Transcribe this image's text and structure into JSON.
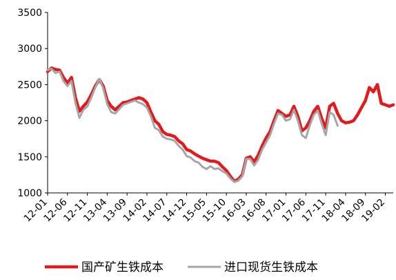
{
  "chart_data": {
    "type": "line",
    "ylim": [
      1000,
      3500
    ],
    "yticks": [
      1000,
      1500,
      2000,
      2500,
      3000,
      3500
    ],
    "xlim": [
      "2012-01",
      "2019-04"
    ],
    "xticks": [
      "12-01",
      "12-06",
      "12-11",
      "13-04",
      "13-09",
      "14-02",
      "14-07",
      "14-12",
      "15-05",
      "15-10",
      "16-03",
      "16-08",
      "17-01",
      "17-06",
      "17-11",
      "18-04",
      "18-09",
      "19-02"
    ],
    "grid": false,
    "legend_position": "bottom",
    "series": [
      {
        "name": "国产矿生铁成本",
        "color": "#e31a1c",
        "points": [
          [
            "2012-01",
            2680
          ],
          [
            "2012-02",
            2730
          ],
          [
            "2012-03",
            2710
          ],
          [
            "2012-04",
            2700
          ],
          [
            "2012-05",
            2600
          ],
          [
            "2012-06",
            2520
          ],
          [
            "2012-07",
            2600
          ],
          [
            "2012-08",
            2320
          ],
          [
            "2012-09",
            2130
          ],
          [
            "2012-10",
            2200
          ],
          [
            "2012-11",
            2260
          ],
          [
            "2012-12",
            2360
          ],
          [
            "2013-01",
            2480
          ],
          [
            "2013-02",
            2570
          ],
          [
            "2013-03",
            2480
          ],
          [
            "2013-04",
            2280
          ],
          [
            "2013-05",
            2200
          ],
          [
            "2013-06",
            2150
          ],
          [
            "2013-07",
            2200
          ],
          [
            "2013-08",
            2250
          ],
          [
            "2013-09",
            2260
          ],
          [
            "2013-10",
            2280
          ],
          [
            "2013-11",
            2300
          ],
          [
            "2013-12",
            2320
          ],
          [
            "2014-01",
            2300
          ],
          [
            "2014-02",
            2250
          ],
          [
            "2014-03",
            2120
          ],
          [
            "2014-04",
            2000
          ],
          [
            "2014-05",
            1950
          ],
          [
            "2014-06",
            1850
          ],
          [
            "2014-07",
            1810
          ],
          [
            "2014-08",
            1800
          ],
          [
            "2014-09",
            1780
          ],
          [
            "2014-10",
            1720
          ],
          [
            "2014-11",
            1680
          ],
          [
            "2014-12",
            1600
          ],
          [
            "2015-01",
            1580
          ],
          [
            "2015-02",
            1540
          ],
          [
            "2015-03",
            1510
          ],
          [
            "2015-04",
            1480
          ],
          [
            "2015-05",
            1460
          ],
          [
            "2015-06",
            1440
          ],
          [
            "2015-07",
            1440
          ],
          [
            "2015-08",
            1420
          ],
          [
            "2015-09",
            1360
          ],
          [
            "2015-10",
            1310
          ],
          [
            "2015-11",
            1230
          ],
          [
            "2015-12",
            1160
          ],
          [
            "2016-01",
            1190
          ],
          [
            "2016-02",
            1250
          ],
          [
            "2016-03",
            1480
          ],
          [
            "2016-04",
            1500
          ],
          [
            "2016-05",
            1430
          ],
          [
            "2016-06",
            1520
          ],
          [
            "2016-07",
            1650
          ],
          [
            "2016-08",
            1760
          ],
          [
            "2016-09",
            1850
          ],
          [
            "2016-10",
            2000
          ],
          [
            "2016-11",
            2140
          ],
          [
            "2016-12",
            2100
          ],
          [
            "2017-01",
            2060
          ],
          [
            "2017-02",
            2080
          ],
          [
            "2017-03",
            2200
          ],
          [
            "2017-04",
            2060
          ],
          [
            "2017-05",
            1860
          ],
          [
            "2017-06",
            1900
          ],
          [
            "2017-07",
            2000
          ],
          [
            "2017-08",
            2130
          ],
          [
            "2017-09",
            2200
          ],
          [
            "2017-10",
            2030
          ],
          [
            "2017-11",
            1900
          ],
          [
            "2017-12",
            2200
          ],
          [
            "2018-01",
            2240
          ],
          [
            "2018-02",
            2100
          ],
          [
            "2018-03",
            2000
          ],
          [
            "2018-04",
            1970
          ],
          [
            "2018-05",
            1980
          ],
          [
            "2018-06",
            2000
          ],
          [
            "2018-07",
            2080
          ],
          [
            "2018-08",
            2180
          ],
          [
            "2018-09",
            2280
          ],
          [
            "2018-10",
            2460
          ],
          [
            "2018-11",
            2400
          ],
          [
            "2018-12",
            2500
          ],
          [
            "2019-01",
            2240
          ],
          [
            "2019-02",
            2220
          ],
          [
            "2019-03",
            2200
          ],
          [
            "2019-04",
            2220
          ]
        ]
      },
      {
        "name": "进口现货生铁成本",
        "color": "#a6a6a6",
        "points": [
          [
            "2012-01",
            2700
          ],
          [
            "2012-02",
            2720
          ],
          [
            "2012-03",
            2660
          ],
          [
            "2012-04",
            2680
          ],
          [
            "2012-05",
            2550
          ],
          [
            "2012-06",
            2480
          ],
          [
            "2012-07",
            2550
          ],
          [
            "2012-08",
            2250
          ],
          [
            "2012-09",
            2040
          ],
          [
            "2012-10",
            2150
          ],
          [
            "2012-11",
            2200
          ],
          [
            "2012-12",
            2320
          ],
          [
            "2013-01",
            2460
          ],
          [
            "2013-02",
            2580
          ],
          [
            "2013-03",
            2450
          ],
          [
            "2013-04",
            2230
          ],
          [
            "2013-05",
            2120
          ],
          [
            "2013-06",
            2100
          ],
          [
            "2013-07",
            2160
          ],
          [
            "2013-08",
            2220
          ],
          [
            "2013-09",
            2240
          ],
          [
            "2013-10",
            2260
          ],
          [
            "2013-11",
            2280
          ],
          [
            "2013-12",
            2250
          ],
          [
            "2014-01",
            2230
          ],
          [
            "2014-02",
            2180
          ],
          [
            "2014-03",
            2060
          ],
          [
            "2014-04",
            1900
          ],
          [
            "2014-05",
            1870
          ],
          [
            "2014-06",
            1780
          ],
          [
            "2014-07",
            1750
          ],
          [
            "2014-08",
            1740
          ],
          [
            "2014-09",
            1720
          ],
          [
            "2014-10",
            1650
          ],
          [
            "2014-11",
            1600
          ],
          [
            "2014-12",
            1510
          ],
          [
            "2015-01",
            1490
          ],
          [
            "2015-02",
            1440
          ],
          [
            "2015-03",
            1420
          ],
          [
            "2015-04",
            1360
          ],
          [
            "2015-05",
            1330
          ],
          [
            "2015-06",
            1370
          ],
          [
            "2015-07",
            1330
          ],
          [
            "2015-08",
            1340
          ],
          [
            "2015-09",
            1300
          ],
          [
            "2015-10",
            1270
          ],
          [
            "2015-11",
            1200
          ],
          [
            "2015-12",
            1150
          ],
          [
            "2016-01",
            1170
          ],
          [
            "2016-02",
            1230
          ],
          [
            "2016-03",
            1470
          ],
          [
            "2016-04",
            1470
          ],
          [
            "2016-05",
            1380
          ],
          [
            "2016-06",
            1460
          ],
          [
            "2016-07",
            1600
          ],
          [
            "2016-08",
            1700
          ],
          [
            "2016-09",
            1800
          ],
          [
            "2016-10",
            1960
          ],
          [
            "2016-11",
            2100
          ],
          [
            "2016-12",
            2080
          ],
          [
            "2017-01",
            2000
          ],
          [
            "2017-02",
            2020
          ],
          [
            "2017-03",
            2150
          ],
          [
            "2017-04",
            2000
          ],
          [
            "2017-05",
            1800
          ],
          [
            "2017-06",
            1760
          ],
          [
            "2017-07",
            1940
          ],
          [
            "2017-08",
            2080
          ],
          [
            "2017-09",
            2140
          ],
          [
            "2017-10",
            1960
          ],
          [
            "2017-11",
            1800
          ],
          [
            "2017-12",
            2120
          ],
          [
            "2018-01",
            2080
          ],
          [
            "2018-02",
            1930
          ]
        ]
      }
    ]
  }
}
